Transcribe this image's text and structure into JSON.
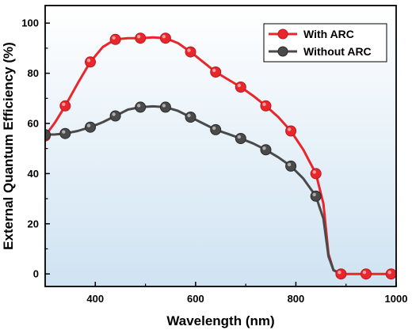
{
  "chart_data": {
    "type": "line",
    "xlabel": "Wavelength (nm)",
    "ylabel": "External Quantum Efficiency (%)",
    "xlim": [
      300,
      1000
    ],
    "ylim": [
      -5,
      107
    ],
    "xticks": [
      400,
      600,
      800,
      1000
    ],
    "yticks": [
      0,
      20,
      40,
      60,
      80,
      100
    ],
    "grid": false,
    "legend_position": "top-right",
    "background_gradient": [
      "#ffffff",
      "#cfe3f2"
    ],
    "series": [
      {
        "name": "With ARC",
        "color": "#e8262b",
        "x": [
          300,
          340,
          390,
          440,
          490,
          540,
          590,
          640,
          690,
          740,
          790,
          840,
          890,
          940,
          990
        ],
        "y": [
          55,
          67,
          84.5,
          93.5,
          94,
          94,
          88.5,
          80.5,
          74.5,
          67,
          57,
          40,
          0,
          0,
          0
        ],
        "curve_x": [
          300,
          320,
          340,
          365,
          390,
          415,
          440,
          465,
          490,
          515,
          540,
          565,
          590,
          615,
          640,
          665,
          690,
          715,
          740,
          765,
          790,
          815,
          840,
          855,
          865,
          875,
          890,
          940,
          990
        ],
        "curve_y": [
          55,
          60.5,
          67,
          76,
          84.5,
          90.5,
          93.5,
          94,
          94,
          94.3,
          94,
          92,
          88.5,
          84.5,
          80.5,
          77.5,
          74.5,
          71,
          67,
          62.5,
          57,
          49.5,
          40,
          28,
          8,
          1.5,
          0,
          0,
          0
        ]
      },
      {
        "name": "Without ARC",
        "color": "#4a4a4a",
        "x": [
          300,
          340,
          390,
          440,
          490,
          540,
          590,
          640,
          690,
          740,
          790,
          840
        ],
        "y": [
          55.5,
          56,
          58.5,
          63,
          66.5,
          66.5,
          62.5,
          57.5,
          54,
          49.5,
          43,
          31
        ],
        "curve_x": [
          300,
          320,
          340,
          365,
          390,
          415,
          440,
          465,
          490,
          515,
          540,
          565,
          590,
          615,
          640,
          665,
          690,
          715,
          740,
          765,
          790,
          815,
          840,
          855,
          865,
          875,
          890
        ],
        "curve_y": [
          55.5,
          55.6,
          56,
          57,
          58.5,
          60.5,
          63,
          65.5,
          66.5,
          66.8,
          66.5,
          65,
          62.5,
          60,
          57.5,
          55.8,
          54,
          52,
          49.5,
          46.5,
          43,
          38,
          31,
          22,
          7,
          1.5,
          0
        ]
      }
    ]
  }
}
